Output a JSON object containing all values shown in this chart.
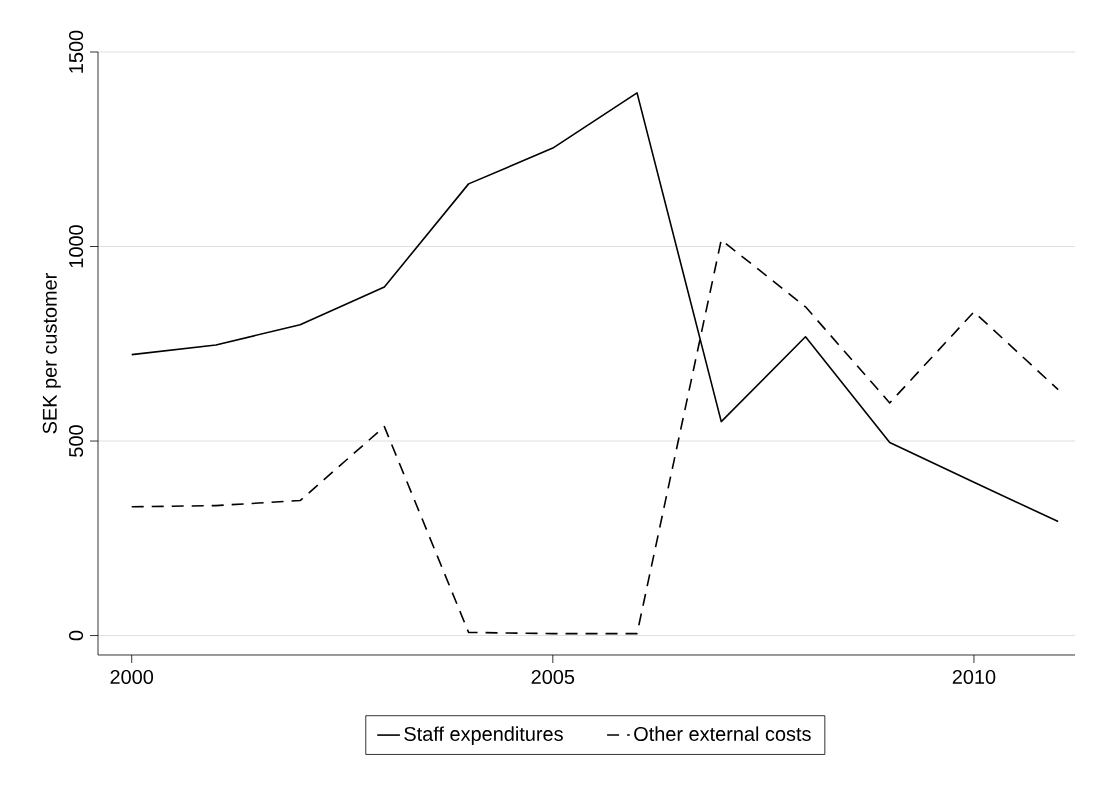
{
  "chart_data": {
    "type": "line",
    "ylabel": "SEK per customer",
    "x": [
      2000,
      2001,
      2002,
      2003,
      2004,
      2005,
      2006,
      2007,
      2008,
      2009,
      2010,
      2011
    ],
    "series": [
      {
        "name": "Staff expenditures",
        "color": "#000000",
        "line_style": "solid",
        "values": [
          722,
          747,
          799,
          896,
          1161,
          1253,
          1395,
          550,
          768,
          496,
          394,
          293
        ]
      },
      {
        "name": "Other external costs",
        "color": "#000000",
        "line_style": "dashed",
        "values": [
          331,
          334,
          347,
          537,
          8,
          5,
          5,
          1017,
          845,
          598,
          832,
          632
        ]
      }
    ],
    "xlim": [
      1999.6,
      2011.2
    ],
    "ylim": [
      -50,
      1500
    ],
    "xticks": [
      2000,
      2005,
      2010
    ],
    "yticks": [
      0,
      500,
      1000,
      1500
    ],
    "grid": "y",
    "legend": "bottom",
    "marker": "none"
  }
}
